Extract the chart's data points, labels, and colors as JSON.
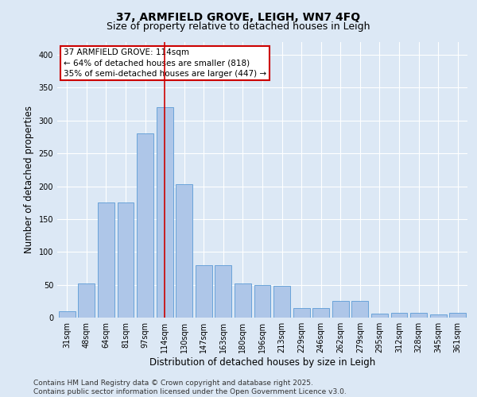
{
  "title_line1": "37, ARMFIELD GROVE, LEIGH, WN7 4FQ",
  "title_line2": "Size of property relative to detached houses in Leigh",
  "xlabel": "Distribution of detached houses by size in Leigh",
  "ylabel": "Number of detached properties",
  "categories": [
    "31sqm",
    "48sqm",
    "64sqm",
    "81sqm",
    "97sqm",
    "114sqm",
    "130sqm",
    "147sqm",
    "163sqm",
    "180sqm",
    "196sqm",
    "213sqm",
    "229sqm",
    "246sqm",
    "262sqm",
    "279sqm",
    "295sqm",
    "312sqm",
    "328sqm",
    "345sqm",
    "361sqm"
  ],
  "values": [
    10,
    52,
    175,
    175,
    280,
    320,
    203,
    80,
    80,
    52,
    50,
    48,
    15,
    15,
    25,
    25,
    6,
    7,
    7,
    5,
    7
  ],
  "bar_color": "#aec6e8",
  "bar_edgecolor": "#5b9bd5",
  "highlight_index": 5,
  "highlight_line_color": "#cc0000",
  "ylim": [
    0,
    420
  ],
  "yticks": [
    0,
    50,
    100,
    150,
    200,
    250,
    300,
    350,
    400
  ],
  "annotation_text_line1": "37 ARMFIELD GROVE: 114sqm",
  "annotation_text_line2": "← 64% of detached houses are smaller (818)",
  "annotation_text_line3": "35% of semi-detached houses are larger (447) →",
  "annotation_box_color": "#ffffff",
  "annotation_box_edgecolor": "#cc0000",
  "footer_line1": "Contains HM Land Registry data © Crown copyright and database right 2025.",
  "footer_line2": "Contains public sector information licensed under the Open Government Licence v3.0.",
  "background_color": "#dce8f5",
  "plot_background_color": "#dce8f5",
  "grid_color": "#ffffff",
  "title_fontsize": 10,
  "subtitle_fontsize": 9,
  "tick_fontsize": 7,
  "label_fontsize": 8.5,
  "footer_fontsize": 6.5,
  "annotation_fontsize": 7.5
}
